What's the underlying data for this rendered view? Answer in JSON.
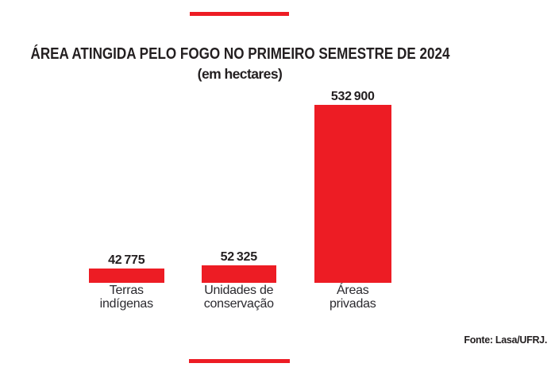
{
  "page": {
    "background_color": "#ffffff",
    "accent_color": "#ed1c24",
    "text_color": "#231f20"
  },
  "header": {
    "title": "ÁREA ATINGIDA PELO FOGO NO PRIMEIRO SEMESTRE DE 2024",
    "subtitle": "(em hectares)"
  },
  "source": {
    "label": "Fonte: Lasa/UFRJ."
  },
  "chart_data": {
    "type": "bar",
    "title": "ÁREA ATINGIDA PELO FOGO NO PRIMEIRO SEMESTRE DE 2024",
    "subtitle": "(em hectares)",
    "unit": "hectares",
    "categories": [
      "Terras indígenas",
      "Unidades de conservação",
      "Áreas privadas"
    ],
    "values": [
      42775,
      52325,
      532900
    ],
    "value_labels": [
      "42 775",
      "52 325",
      "532 900"
    ],
    "category_lines": [
      [
        "Terras",
        "indígenas"
      ],
      [
        "Unidades de",
        "conservação"
      ],
      [
        "Áreas",
        "privadas"
      ]
    ],
    "bar_color": "#ed1c24",
    "ylim": [
      0,
      532900
    ],
    "grid": false,
    "legend": false,
    "source": "Fonte: Lasa/UFRJ."
  }
}
